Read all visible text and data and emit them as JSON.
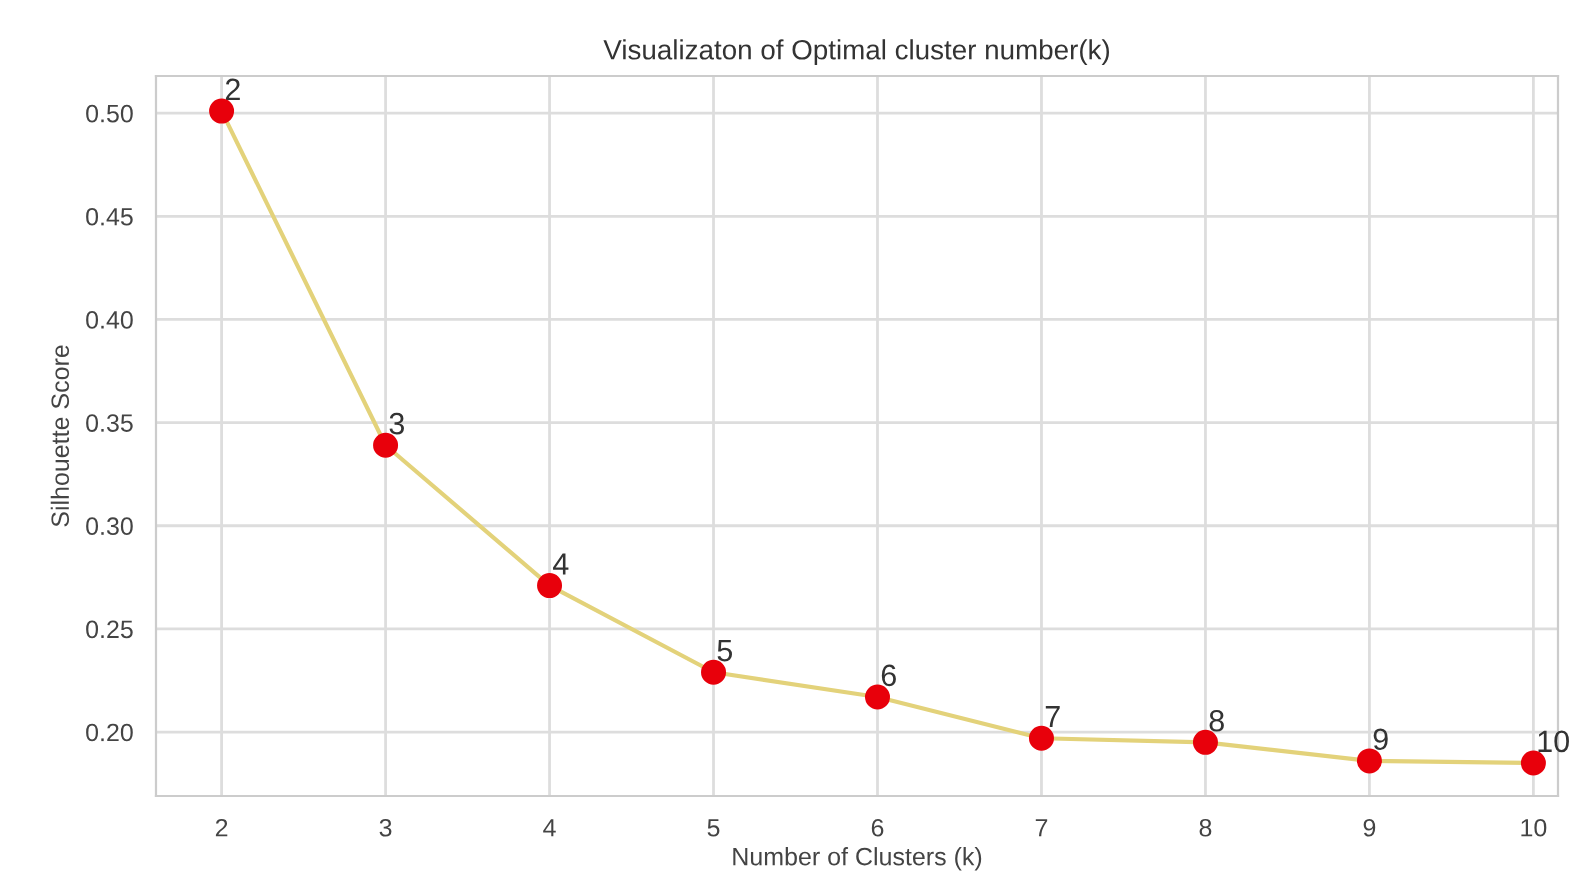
{
  "chart_data": {
    "type": "line",
    "title": "Visualizaton of Optimal cluster number(k)",
    "xlabel": "Number of Clusters (k)",
    "ylabel": "Silhouette Score",
    "x": [
      2,
      3,
      4,
      5,
      6,
      7,
      8,
      9,
      10
    ],
    "series": [
      {
        "color": "#e3d27a",
        "colors": [
          "#e8000b",
          "#e8000b",
          "#e8000b",
          "#e8000b",
          "#e8000b",
          "#e8000b",
          "#e8000b",
          "#e8000b",
          "#e8000b"
        ],
        "values": [
          0.501,
          0.339,
          0.271,
          0.229,
          0.217,
          0.197,
          0.195,
          0.186,
          0.185
        ]
      }
    ],
    "marker": "circle",
    "line_style": "solid",
    "grid": true,
    "xlim": [
      1.6,
      10.15
    ],
    "xticks": [
      2,
      3,
      4,
      5,
      6,
      7,
      8,
      9,
      10
    ],
    "ylim": [
      0.169,
      0.518
    ],
    "yticks": [
      {
        "value": 0.2,
        "label": "0.20"
      },
      {
        "value": 0.25,
        "label": "0.25"
      },
      {
        "value": 0.3,
        "label": "0.30"
      },
      {
        "value": 0.35,
        "label": "0.35"
      },
      {
        "value": 0.4,
        "label": "0.40"
      },
      {
        "value": 0.45,
        "label": "0.45"
      },
      {
        "value": 0.5,
        "label": "0.50"
      }
    ],
    "annotations": [
      {
        "text": "2",
        "x": 2,
        "y": 0.501
      },
      {
        "text": "3",
        "x": 3,
        "y": 0.339
      },
      {
        "text": "4",
        "x": 4,
        "y": 0.271
      },
      {
        "text": "5",
        "x": 5,
        "y": 0.229
      },
      {
        "text": "6",
        "x": 6,
        "y": 0.217
      },
      {
        "text": "7",
        "x": 7,
        "y": 0.197
      },
      {
        "text": "8",
        "x": 8,
        "y": 0.195
      },
      {
        "text": "9",
        "x": 9,
        "y": 0.186
      },
      {
        "text": "10",
        "x": 10,
        "y": 0.185
      }
    ]
  }
}
